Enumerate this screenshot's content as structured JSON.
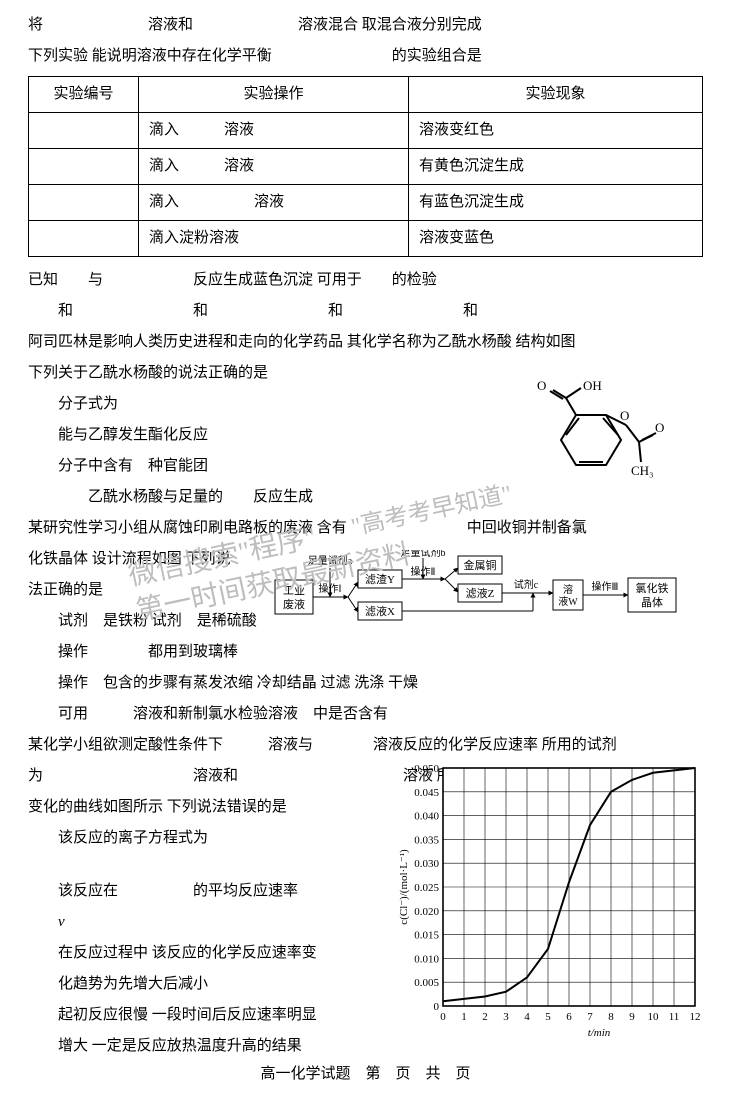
{
  "q7": {
    "stem1": "将　　　　　　　溶液和　　　　　　　溶液混合 取混合液分别完成",
    "stem2": "下列实验 能说明溶液中存在化学平衡　　　　　　　　的实验组合是",
    "table": {
      "headers": [
        "实验编号",
        "实验操作",
        "实验现象"
      ],
      "rows": [
        [
          "",
          "滴入　　　溶液",
          "溶液变红色"
        ],
        [
          "",
          "滴入　　　溶液",
          "有黄色沉淀生成"
        ],
        [
          "",
          "滴入　　　　　溶液",
          "有蓝色沉淀生成"
        ],
        [
          "",
          "滴入淀粉溶液",
          "溶液变蓝色"
        ]
      ]
    },
    "note": "已知　　与　　　　　　反应生成蓝色沉淀 可用于　　的检验",
    "options": "　　和　　　　　　　　和　　　　　　　　和　　　　　　　　和"
  },
  "q8": {
    "stem1": "阿司匹林是影响人类历史进程和走向的化学药品 其化学名称为乙酰水杨酸 结构如图",
    "stem2": "下列关于乙酰水杨酸的说法正确的是",
    "optA": "分子式为",
    "optB": "能与乙醇发生酯化反应",
    "optC": "分子中含有　种官能团",
    "optD": "　　乙酰水杨酸与足量的　　反应生成",
    "molecule": {
      "ring_color": "#000",
      "label_COOH": "OH",
      "label_O": "O",
      "label_OC": "O",
      "label_CH3": "CH₃"
    }
  },
  "q9": {
    "stem1": "某研究性学习小组从腐蚀印刷电路板的废液 含有　　　　　　　　中回收铜并制备氯",
    "stem2": "化铁晶体 设计流程如图 下列说",
    "stem3": "法正确的是",
    "optA": "试剂　是铁粉 试剂　是稀硫酸",
    "optB": "操作　　　　都用到玻璃棒",
    "optC": "操作　包含的步骤有蒸发浓缩 冷却结晶 过滤 洗涤 干燥",
    "optD": "可用　　　溶液和新制氯水检验溶液　中是否含有",
    "flow": {
      "box_color": "#000",
      "box1": "工业废液",
      "op1": "操作Ⅰ",
      "lab_a": "足量试剂a",
      "box2": "滤渣Y",
      "box3": "滤液X",
      "op2": "操作Ⅱ",
      "lab_b": "足量试剂b",
      "box4": "金属铜",
      "box5": "滤液Z",
      "lab_c": "试剂c",
      "box6": "溶液W",
      "op3": "操作Ⅲ",
      "box7": "氯化铁晶体"
    }
  },
  "q10": {
    "stem1": "某化学小组欲测定酸性条件下　　　溶液与　　　　溶液反应的化学反应速率 所用的试剂",
    "stem2": "为　　　　　　　　　　溶液和　　　　　　　　　　　溶液 所得 c　　　随时间",
    "stem3": "变化的曲线如图所示 下列说法错误的是",
    "optA": "该反应的离子方程式为",
    "optB1": "该反应在　　　　　的平均反应速率",
    "optB2": "v",
    "optC1": "在反应过程中 该反应的化学反应速率变",
    "optC2": "化趋势为先增大后减小",
    "optD1": "起初反应很慢 一段时间后反应速率明显",
    "optD2": "增大 一定是反应放热温度升高的结果",
    "chart": {
      "ylabel": "c(Cl⁻)/(mol·L⁻¹)",
      "xlabel": "t/min",
      "ymin": 0,
      "ymax": 0.05,
      "ystep": 0.005,
      "xmin": 0,
      "xmax": 12,
      "xstep": 1,
      "yticks": [
        "0",
        "0.005",
        "0.010",
        "0.015",
        "0.020",
        "0.025",
        "0.030",
        "0.035",
        "0.040",
        "0.045",
        "0.050"
      ],
      "xticks": [
        "0",
        "1",
        "2",
        "3",
        "4",
        "5",
        "6",
        "7",
        "8",
        "9",
        "10",
        "11",
        "12"
      ],
      "curve": [
        [
          0,
          0.001
        ],
        [
          1,
          0.0015
        ],
        [
          2,
          0.002
        ],
        [
          3,
          0.003
        ],
        [
          4,
          0.006
        ],
        [
          5,
          0.012
        ],
        [
          6,
          0.026
        ],
        [
          7,
          0.038
        ],
        [
          8,
          0.045
        ],
        [
          9,
          0.0475
        ],
        [
          10,
          0.049
        ],
        [
          11,
          0.0495
        ],
        [
          12,
          0.05
        ]
      ],
      "grid_color": "#000",
      "curve_color": "#000",
      "bg": "#fff",
      "fontsize": 11
    }
  },
  "footer": "高一化学试题　第　页　共　页",
  "watermark1": "微信搜索\"程序\"",
  "watermark2": "第一时间获取最新资料",
  "watermark3": "\"高考考早知道\""
}
